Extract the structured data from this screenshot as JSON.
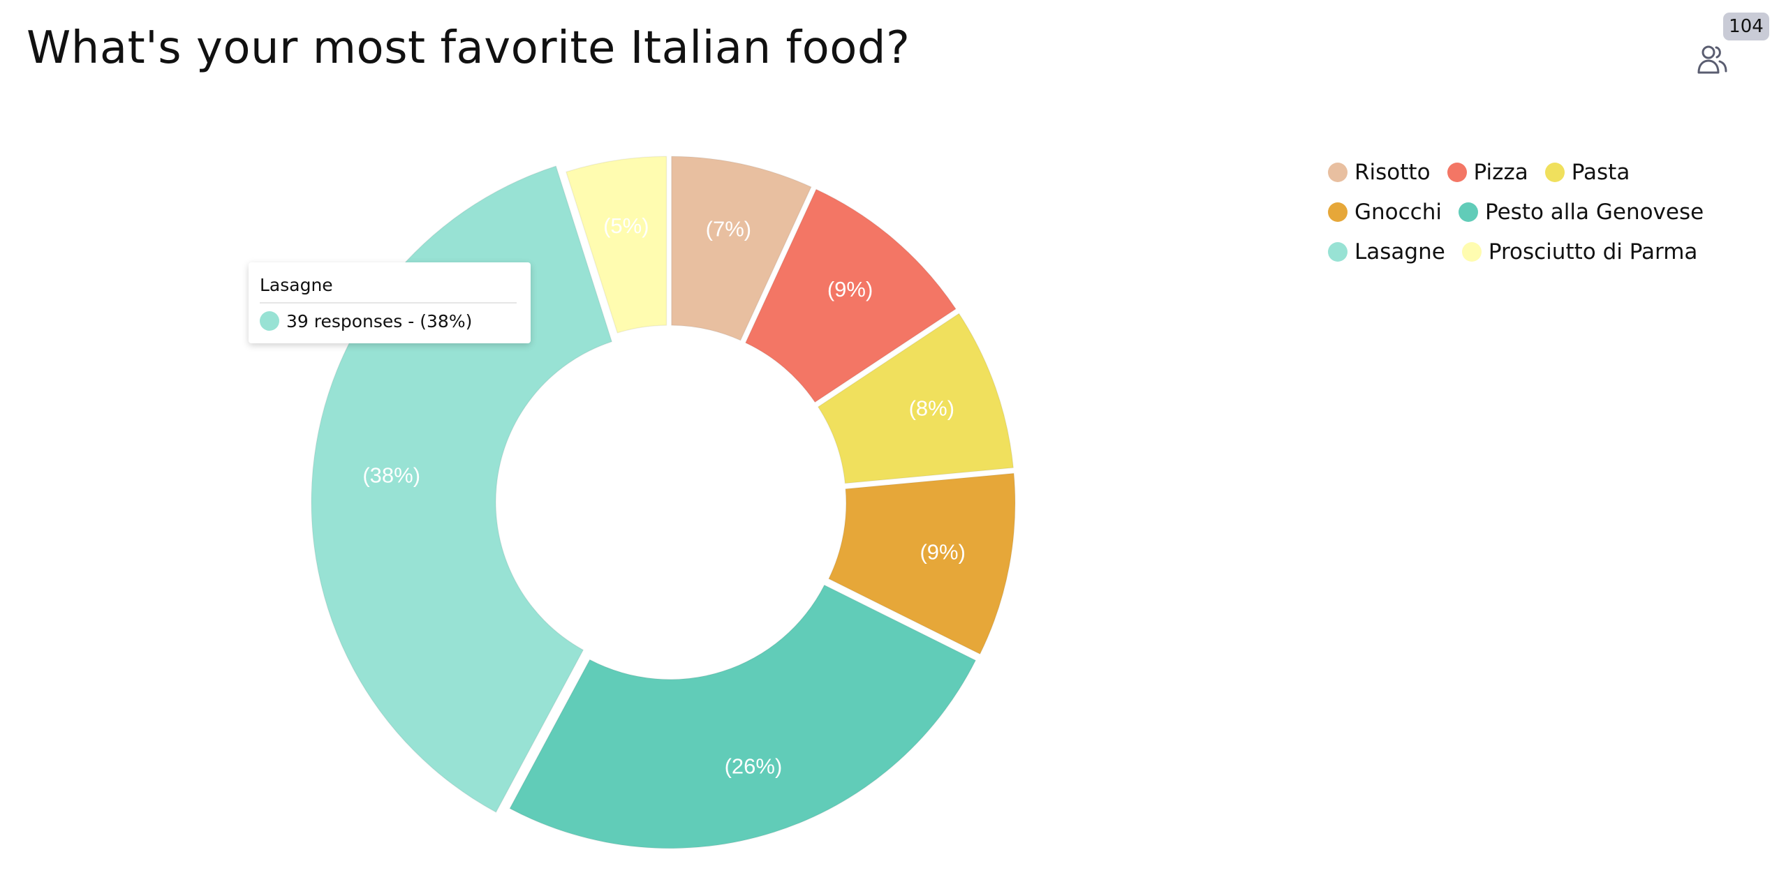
{
  "header": {
    "title": "What's your most favorite Italian food?",
    "participant_count": "104",
    "participant_icon": "users-icon"
  },
  "chart_data": {
    "type": "pie",
    "variant": "donut",
    "categories": [
      "Risotto",
      "Pizza",
      "Pasta",
      "Gnocchi",
      "Pesto alla Genovese",
      "Lasagne",
      "Prosciutto di Parma"
    ],
    "values": [
      7,
      9,
      8,
      9,
      26,
      38,
      5
    ],
    "labels": [
      "(7%)",
      "(9%)",
      "(8%)",
      "(9%)",
      "(26%)",
      "(38%)",
      "(5%)"
    ],
    "colors": [
      "#e8bfa0",
      "#f37665",
      "#f0e05d",
      "#e6a739",
      "#61ccb8",
      "#98e2d4",
      "#fffcb0"
    ],
    "highlighted": "Lasagne",
    "legend_position": "top-right",
    "legend_rows": [
      [
        "Risotto",
        "Pizza",
        "Pasta"
      ],
      [
        "Gnocchi",
        "Pesto alla Genovese"
      ],
      [
        "Lasagne",
        "Prosciutto di Parma"
      ]
    ],
    "title": "What's your most favorite Italian food?"
  },
  "tooltip": {
    "title": "Lasagne",
    "text": "39 responses - (38%)",
    "color": "#98e2d4"
  }
}
